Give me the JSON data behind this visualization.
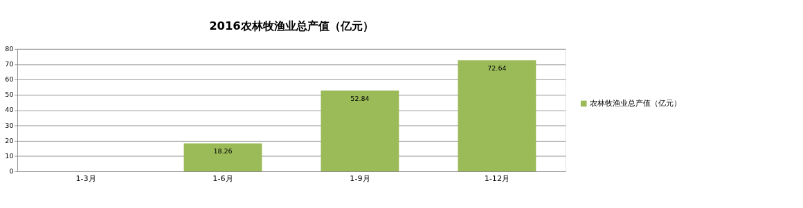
{
  "chart_data": {
    "type": "bar",
    "title": "2016农林牧渔业总产值（亿元）",
    "categories": [
      "1-3月",
      "1-6月",
      "1-9月",
      "1-12月"
    ],
    "series": [
      {
        "name": "农林牧渔业总产值（亿元）",
        "color": "#9bbb59",
        "values": [
          null,
          18.26,
          52.84,
          72.64
        ]
      }
    ],
    "ylim": [
      0,
      80
    ],
    "yticks": [
      0,
      10,
      20,
      30,
      40,
      50,
      60,
      70,
      80
    ],
    "grid": "y",
    "legend": "right",
    "data_labels": true
  }
}
